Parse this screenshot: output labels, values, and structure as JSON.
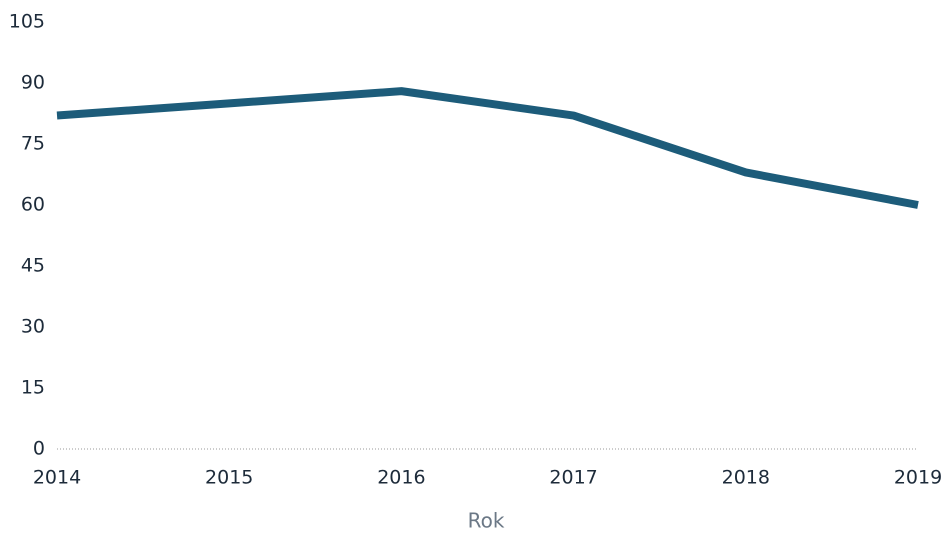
{
  "chart_data": {
    "type": "line",
    "x_label": "Rok",
    "categories": [
      "2014",
      "2015",
      "2016",
      "2017",
      "2018",
      "2019"
    ],
    "series": [
      {
        "color": "#1d5c7a",
        "values": [
          82,
          85,
          88,
          82,
          68,
          60
        ]
      }
    ],
    "ylim": [
      0,
      105
    ],
    "yticks": [
      0,
      15,
      30,
      45,
      60,
      75,
      90,
      105
    ],
    "grid": false
  }
}
